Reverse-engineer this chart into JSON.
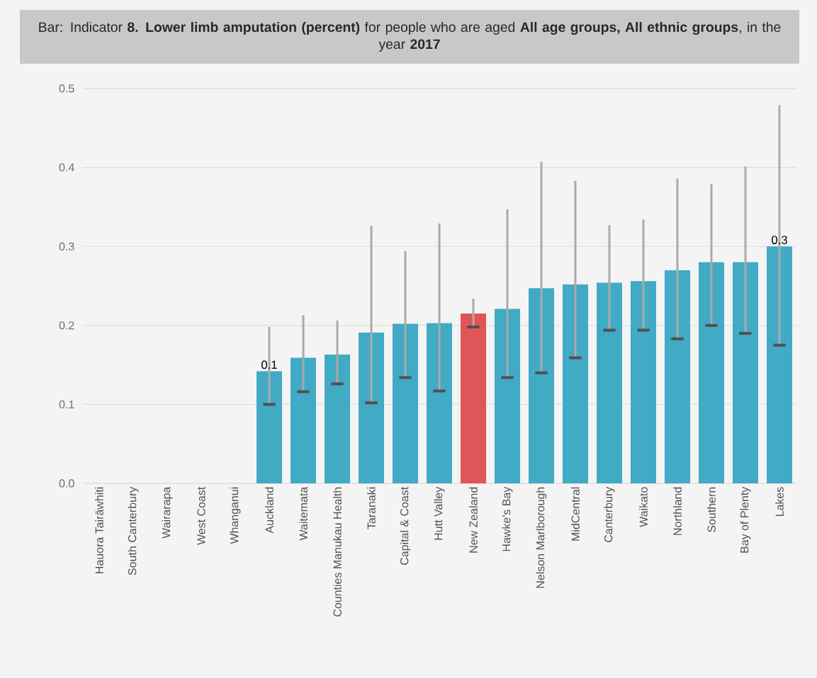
{
  "chart_data": {
    "type": "bar",
    "title": "Bar: Indicator **8. Lower limb amputation (percent)** for people who are aged **All age groups, All ethnic groups**, in the year **2017**",
    "categories": [
      "Hauora Tairāwhiti",
      "South Canterbury",
      "Wairarapa",
      "West Coast",
      "Whanganui",
      "Auckland",
      "Waitemata",
      "Counties Manukau Health",
      "Taranaki",
      "Capital & Coast",
      "Hutt Valley",
      "New Zealand",
      "Hawke's Bay",
      "Nelson Marlborough",
      "MidCentral",
      "Canterbury",
      "Waikato",
      "Northland",
      "Southern",
      "Bay of Plenty",
      "Lakes"
    ],
    "values": [
      null,
      null,
      null,
      null,
      null,
      0.142,
      0.159,
      0.163,
      0.191,
      0.202,
      0.203,
      0.215,
      0.221,
      0.247,
      0.252,
      0.254,
      0.256,
      0.27,
      0.28,
      0.28,
      0.3
    ],
    "colors": [
      "#41aac4",
      "#41aac4",
      "#41aac4",
      "#41aac4",
      "#41aac4",
      "#41aac4",
      "#41aac4",
      "#41aac4",
      "#41aac4",
      "#41aac4",
      "#41aac4",
      "#e05558",
      "#41aac4",
      "#41aac4",
      "#41aac4",
      "#41aac4",
      "#41aac4",
      "#41aac4",
      "#41aac4",
      "#41aac4",
      "#41aac4"
    ],
    "errors": [
      null,
      null,
      null,
      null,
      null,
      [
        0.1,
        0.198
      ],
      [
        0.116,
        0.213
      ],
      [
        0.126,
        0.206
      ],
      [
        0.102,
        0.326
      ],
      [
        0.134,
        0.294
      ],
      [
        0.117,
        0.329
      ],
      [
        0.198,
        0.234
      ],
      [
        0.134,
        0.347
      ],
      [
        0.14,
        0.407
      ],
      [
        0.159,
        0.383
      ],
      [
        0.194,
        0.327
      ],
      [
        0.194,
        0.334
      ],
      [
        0.183,
        0.386
      ],
      [
        0.2,
        0.379
      ],
      [
        0.19,
        0.401
      ],
      [
        0.175,
        0.479
      ]
    ],
    "value_labels": [
      null,
      null,
      null,
      null,
      null,
      "0.1",
      null,
      null,
      null,
      null,
      null,
      null,
      null,
      null,
      null,
      null,
      null,
      null,
      null,
      null,
      "0.3"
    ],
    "ylim": [
      0,
      0.5
    ],
    "yticks": [
      {
        "value": 0,
        "label": "0.0"
      },
      0.1,
      0.2,
      0.3,
      0.4,
      0.5
    ],
    "grid": "y"
  }
}
